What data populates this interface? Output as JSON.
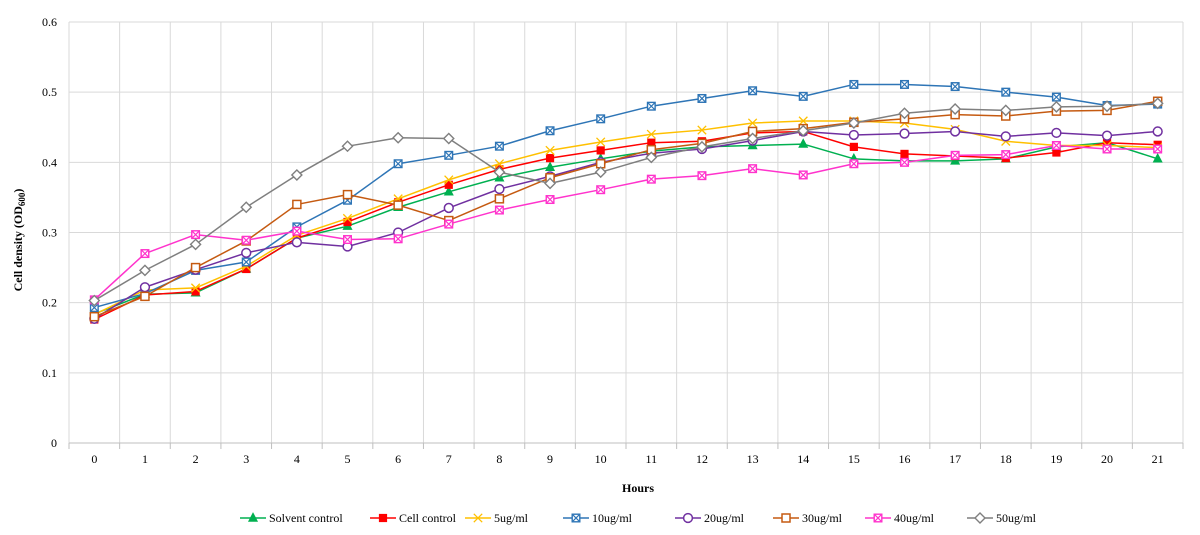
{
  "chart_data": {
    "type": "line",
    "xlabel": "Hours",
    "ylabel": "Cell density (OD",
    "ylabel_sub": "600",
    "ylabel_close": ")",
    "x": [
      0,
      1,
      2,
      3,
      4,
      5,
      6,
      7,
      8,
      9,
      10,
      11,
      12,
      13,
      14,
      15,
      16,
      17,
      18,
      19,
      20,
      21
    ],
    "ylim": [
      0,
      0.6
    ],
    "yticks": [
      "0",
      "0.1",
      "0.2",
      "0.3",
      "0.4",
      "0.5",
      "0.6"
    ],
    "legend_position": "bottom",
    "series": [
      {
        "name": "Solvent control",
        "color": "#00b050",
        "marker": "triangle",
        "values": [
          0.184,
          0.212,
          0.214,
          0.248,
          0.292,
          0.309,
          0.336,
          0.358,
          0.378,
          0.393,
          0.405,
          0.416,
          0.422,
          0.424,
          0.426,
          0.405,
          0.402,
          0.402,
          0.405,
          0.422,
          0.428,
          0.405
        ]
      },
      {
        "name": "Cell control",
        "color": "#ff0000",
        "marker": "square-filled",
        "values": [
          0.176,
          0.211,
          0.216,
          0.248,
          0.292,
          0.315,
          0.343,
          0.368,
          0.39,
          0.406,
          0.417,
          0.428,
          0.43,
          0.442,
          0.444,
          0.422,
          0.412,
          0.409,
          0.406,
          0.414,
          0.428,
          0.425
        ]
      },
      {
        "name": "5ug/ml",
        "color": "#ffc000",
        "marker": "x",
        "values": [
          0.183,
          0.218,
          0.221,
          0.252,
          0.296,
          0.32,
          0.348,
          0.375,
          0.398,
          0.417,
          0.429,
          0.44,
          0.446,
          0.456,
          0.459,
          0.459,
          0.456,
          0.447,
          0.43,
          0.424,
          0.424,
          0.421
        ]
      },
      {
        "name": "10ug/ml",
        "color": "#2e75b6",
        "marker": "square-x",
        "values": [
          0.193,
          0.213,
          0.246,
          0.258,
          0.308,
          0.346,
          0.398,
          0.41,
          0.423,
          0.445,
          0.462,
          0.48,
          0.491,
          0.502,
          0.494,
          0.511,
          0.511,
          0.508,
          0.5,
          0.493,
          0.481,
          0.483
        ]
      },
      {
        "name": "20ug/ml",
        "color": "#7030a0",
        "marker": "circle",
        "values": [
          0.177,
          0.222,
          0.247,
          0.271,
          0.286,
          0.28,
          0.3,
          0.335,
          0.362,
          0.38,
          0.4,
          0.413,
          0.419,
          0.431,
          0.444,
          0.439,
          0.441,
          0.444,
          0.437,
          0.442,
          0.438,
          0.444
        ]
      },
      {
        "name": "30ug/ml",
        "color": "#c55a11",
        "marker": "square",
        "values": [
          0.18,
          0.209,
          0.25,
          0.288,
          0.34,
          0.354,
          0.339,
          0.317,
          0.348,
          0.378,
          0.398,
          0.418,
          0.427,
          0.444,
          0.448,
          0.457,
          0.462,
          0.468,
          0.466,
          0.473,
          0.474,
          0.487
        ]
      },
      {
        "name": "40ug/ml",
        "color": "#ff33cc",
        "marker": "square-x",
        "values": [
          0.204,
          0.27,
          0.297,
          0.289,
          0.302,
          0.29,
          0.291,
          0.312,
          0.332,
          0.347,
          0.361,
          0.376,
          0.381,
          0.391,
          0.382,
          0.398,
          0.4,
          0.41,
          0.411,
          0.424,
          0.419,
          0.419
        ]
      },
      {
        "name": "50ug/ml",
        "color": "#7f7f7f",
        "marker": "diamond",
        "values": [
          0.203,
          0.246,
          0.283,
          0.336,
          0.382,
          0.423,
          0.435,
          0.434,
          0.386,
          0.37,
          0.386,
          0.407,
          0.422,
          0.434,
          0.445,
          0.456,
          0.47,
          0.476,
          0.474,
          0.479,
          0.48,
          0.484
        ]
      }
    ]
  }
}
